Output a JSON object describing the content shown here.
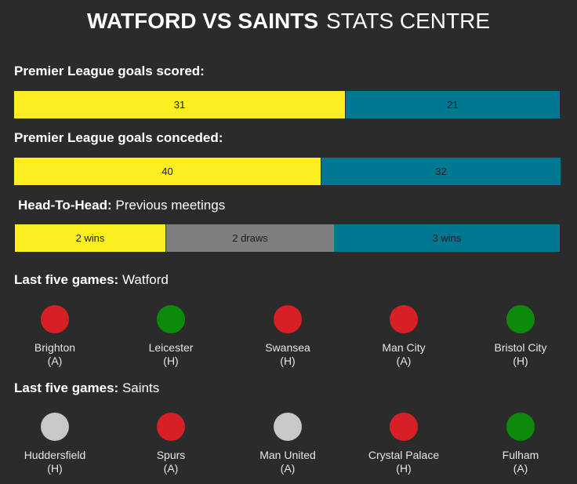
{
  "header": {
    "title_bold": "WATFORD VS SAINTS",
    "title_rest": "STATS CENTRE"
  },
  "colors": {
    "watford": "#fdee21",
    "saints": "#007891",
    "draw": "#7f7f7f",
    "loss": "#d71f26",
    "win": "#0c8a0c",
    "draw_result": "#c8c8c8"
  },
  "goals_scored": {
    "label": "Premier League goals scored:",
    "watford": "31",
    "saints": "21"
  },
  "goals_conceded": {
    "label": "Premier League goals conceded:",
    "watford": "40",
    "saints": "32"
  },
  "head_to_head": {
    "label_bold": "Head-To-Head:",
    "label_rest": "Previous meetings",
    "watford": "2 wins",
    "draws": "2 draws",
    "saints": "3 wins"
  },
  "watford_form": {
    "label_bold": "Last five games:",
    "label_rest": "Watford",
    "games": [
      {
        "opponent": "Brighton",
        "venue": "(A)",
        "result": "loss"
      },
      {
        "opponent": "Leicester",
        "venue": "(H)",
        "result": "win"
      },
      {
        "opponent": "Swansea",
        "venue": "(H)",
        "result": "loss"
      },
      {
        "opponent": "Man City",
        "venue": "(A)",
        "result": "loss"
      },
      {
        "opponent": "Bristol City",
        "venue": "(H)",
        "result": "win"
      }
    ]
  },
  "saints_form": {
    "label_bold": "Last five games:",
    "label_rest": "Saints",
    "games": [
      {
        "opponent": "Huddersfield",
        "venue": "(H)",
        "result": "draw"
      },
      {
        "opponent": "Spurs",
        "venue": "(A)",
        "result": "loss"
      },
      {
        "opponent": "Man United",
        "venue": "(A)",
        "result": "draw"
      },
      {
        "opponent": "Crystal Palace",
        "venue": "(H)",
        "result": "loss"
      },
      {
        "opponent": "Fulham",
        "venue": "(A)",
        "result": "win"
      }
    ]
  }
}
